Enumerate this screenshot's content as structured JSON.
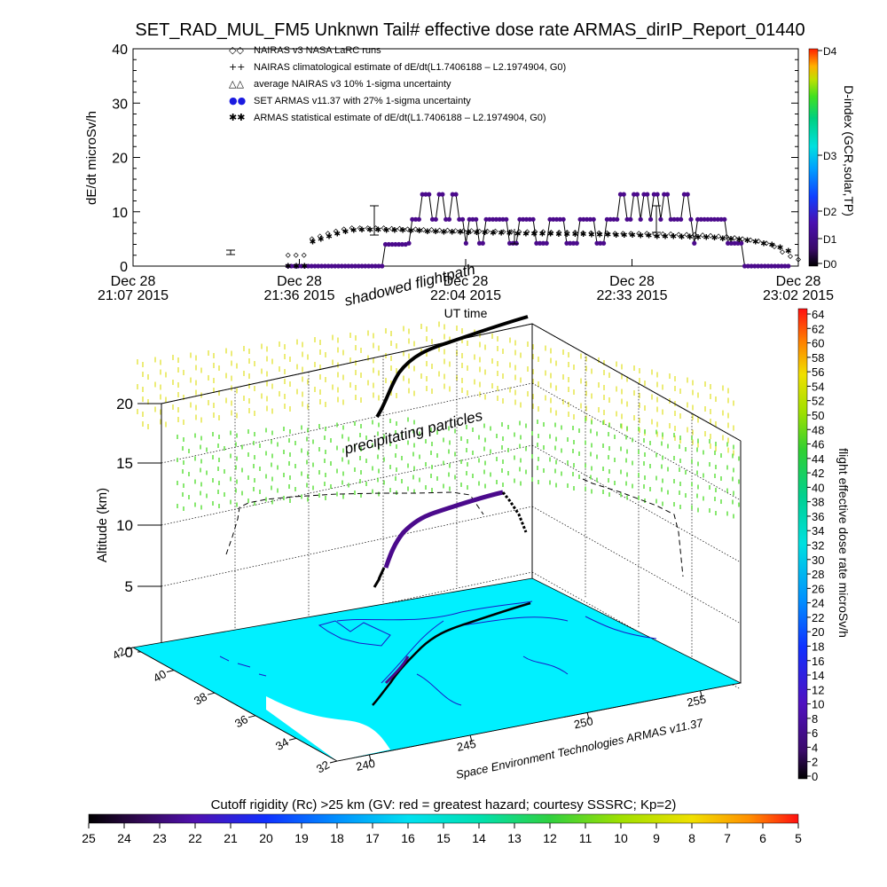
{
  "title": "SET_RAD_MUL_FM5 Unknwn Tail#  effective dose rate ARMAS_dirIP_Report_01440",
  "footer_credit": "Space Environment Technologies ARMAS v11.37",
  "colors": {
    "purple": "#4b0a8c",
    "cyan": "#00f0ff",
    "coast": "#2020c0",
    "yellow": "#e6e64a",
    "green": "#60e040",
    "black": "#000000"
  },
  "chart_data": [
    {
      "id": "dose-timeseries",
      "type": "line",
      "ylabel": "dE/dt microSv/h",
      "xlabel": "UT time",
      "ylim": [
        0,
        40
      ],
      "yticks": [
        "0",
        "10",
        "20",
        "30",
        "40"
      ],
      "xticks": [
        {
          "l1": "Dec 28",
          "l2": "21:07 2015"
        },
        {
          "l1": "Dec 28",
          "l2": "21:36 2015"
        },
        {
          "l1": "Dec 28",
          "l2": "22:04 2015"
        },
        {
          "l1": "Dec 28",
          "l2": "22:33 2015"
        },
        {
          "l1": "Dec 28",
          "l2": "23:02 2015"
        }
      ],
      "legend": [
        {
          "symbol": "◇◇",
          "label": "NAIRAS v3 NASA LaRC runs"
        },
        {
          "symbol": "++",
          "label": "NAIRAS climatological estimate of dE/dt(L1.7406188 – L2.1974904, G0)"
        },
        {
          "symbol": "△△",
          "label": "average NAIRAS v3 10% 1-sigma uncertainty"
        },
        {
          "symbol": "●●",
          "label": "SET ARMAS v11.37 with 27% 1-sigma uncertainty"
        },
        {
          "symbol": "✱✱",
          "label": "ARMAS statistical estimate of dE/dt(L1.7406188 – L2.1974904, G0)"
        }
      ],
      "right_axis": {
        "label": "D-index (GCR,solar,TP)",
        "ticks": [
          "D0",
          "D1",
          "D2",
          "D3",
          "D4"
        ]
      },
      "series": [
        {
          "name": "SET ARMAS v11.37 with 27% 1-sigma uncertainty",
          "values": [
            0,
            0,
            0,
            0,
            0,
            0,
            0,
            0,
            0,
            0,
            0,
            0,
            0,
            0,
            0,
            0,
            0,
            0,
            0,
            0,
            0,
            0,
            0,
            0,
            0,
            0,
            0,
            0,
            0,
            4,
            4,
            4,
            4,
            4,
            4,
            4,
            4.2,
            8.6,
            8.6,
            8.6,
            13.2,
            13.2,
            13.2,
            8.6,
            8.6,
            13.2,
            13.2,
            8.6,
            8.6,
            13.2,
            13.2,
            8.6,
            8.6,
            4.2,
            8.6,
            8.6,
            8.6,
            4.2,
            4.2,
            8.6,
            8.6,
            8.6,
            8.6,
            8.6,
            8.6,
            8.6,
            4.2,
            4.2,
            4.2,
            8.6,
            8.6,
            8.6,
            8.6,
            8.6,
            4.2,
            4.2,
            4.2,
            4.2,
            8.6,
            8.6,
            8.6,
            8.6,
            8.6,
            4.2,
            4.2,
            4.2,
            4.2,
            8.6,
            8.6,
            8.6,
            8.6,
            8.6,
            4.2,
            4.2,
            4.2,
            8.6,
            8.6,
            8.6,
            8.6,
            13.2,
            13.2,
            8.6,
            8.6,
            13.2,
            13.2,
            8.6,
            13.2,
            13.2,
            8.6,
            13.2,
            13.2,
            8.6,
            13.2,
            13.2,
            8.6,
            8.6,
            8.6,
            8.6,
            13.2,
            13.2,
            8.6,
            4.2,
            8.6,
            8.6,
            8.6,
            8.6,
            8.6,
            8.6,
            8.6,
            8.6,
            8.6,
            4.2,
            4.2,
            4.2,
            4.2,
            4.2,
            0,
            0,
            0,
            0,
            0,
            0,
            0,
            0,
            0,
            0,
            0,
            0,
            0,
            0
          ],
          "x_start": 0.233,
          "x_end": 0.985
        },
        {
          "name": "NAIRAS v3 NASA LaRC runs",
          "values": [
            2,
            2,
            2,
            5,
            5.5,
            6,
            6.4,
            6.8,
            7,
            7,
            7,
            7,
            7,
            6.9,
            6.9,
            6.8,
            6.8,
            6.7,
            6.7,
            6.6,
            6.6,
            6.5,
            6.5,
            6.5,
            6.4,
            6.4,
            6.4,
            6.3,
            6.3,
            6.3,
            6.3,
            6.3,
            6.3,
            6.2,
            6.2,
            6.2,
            6.2,
            6.1,
            6.1,
            6.1,
            6.1,
            6,
            6,
            6,
            6,
            6,
            5.9,
            5.9,
            5.9,
            5.8,
            5.8,
            5.8,
            5.7,
            5.6,
            5.5,
            5.4,
            5.2,
            5,
            4.8,
            4.6,
            4.2,
            3.6,
            2.6,
            1.8,
            1.2
          ],
          "x_start": 0.233,
          "x_end": 1.0
        },
        {
          "name": "ARMAS statistical estimate of dE/dt(L1.7406188 – L2.1974904, G0)",
          "values": [
            0,
            0,
            0,
            4.5,
            5,
            5.5,
            6,
            6.4,
            6.6,
            6.7,
            6.7,
            6.7,
            6.6,
            6.6,
            6.6,
            6.5,
            6.5,
            6.4,
            6.4,
            6.3,
            6.3,
            6.3,
            6.2,
            6.2,
            6.2,
            6.1,
            6.1,
            6.1,
            6,
            6,
            6,
            6,
            6,
            5.9,
            5.9,
            5.9,
            5.9,
            5.8,
            5.8,
            5.8,
            5.7,
            5.7,
            5.7,
            5.6,
            5.6,
            5.5,
            5.5,
            5.5,
            5.4,
            5.4,
            5.3,
            5.3,
            5.2,
            5.1,
            5,
            4.9,
            4.7,
            4.5,
            4.2,
            3.9,
            3.4,
            2.8
          ],
          "x_start": 0.233,
          "x_end": 0.985
        }
      ]
    },
    {
      "id": "altitude-3d",
      "type": "scatter",
      "zlabel": "Altitude (km)",
      "zticks": [
        "0",
        "5",
        "10",
        "15",
        "20"
      ],
      "lat_ticks": [
        "42",
        "40",
        "38",
        "36",
        "34",
        "32"
      ],
      "lon_ticks": [
        "240",
        "245",
        "250",
        "255"
      ],
      "annotations": [
        "shadowed flightpath",
        "precipitating particles"
      ],
      "right_colorbar": {
        "label": "flight effective dose rate microSv/h",
        "ticks": [
          "0",
          "2",
          "4",
          "6",
          "8",
          "10",
          "12",
          "14",
          "16",
          "18",
          "20",
          "22",
          "24",
          "26",
          "28",
          "30",
          "32",
          "34",
          "36",
          "38",
          "40",
          "42",
          "44",
          "46",
          "48",
          "50",
          "52",
          "54",
          "56",
          "58",
          "60",
          "62",
          "64"
        ]
      },
      "bottom_colorbar": {
        "title": "Cutoff rigidity (Rc) >25 km (GV: red = greatest hazard; courtesy SSSRC; Kp=2)",
        "ticks": [
          "25",
          "24",
          "23",
          "22",
          "21",
          "20",
          "19",
          "18",
          "17",
          "16",
          "15",
          "14",
          "13",
          "12",
          "11",
          "10",
          "9",
          "8",
          "7",
          "6",
          "5"
        ]
      }
    }
  ]
}
